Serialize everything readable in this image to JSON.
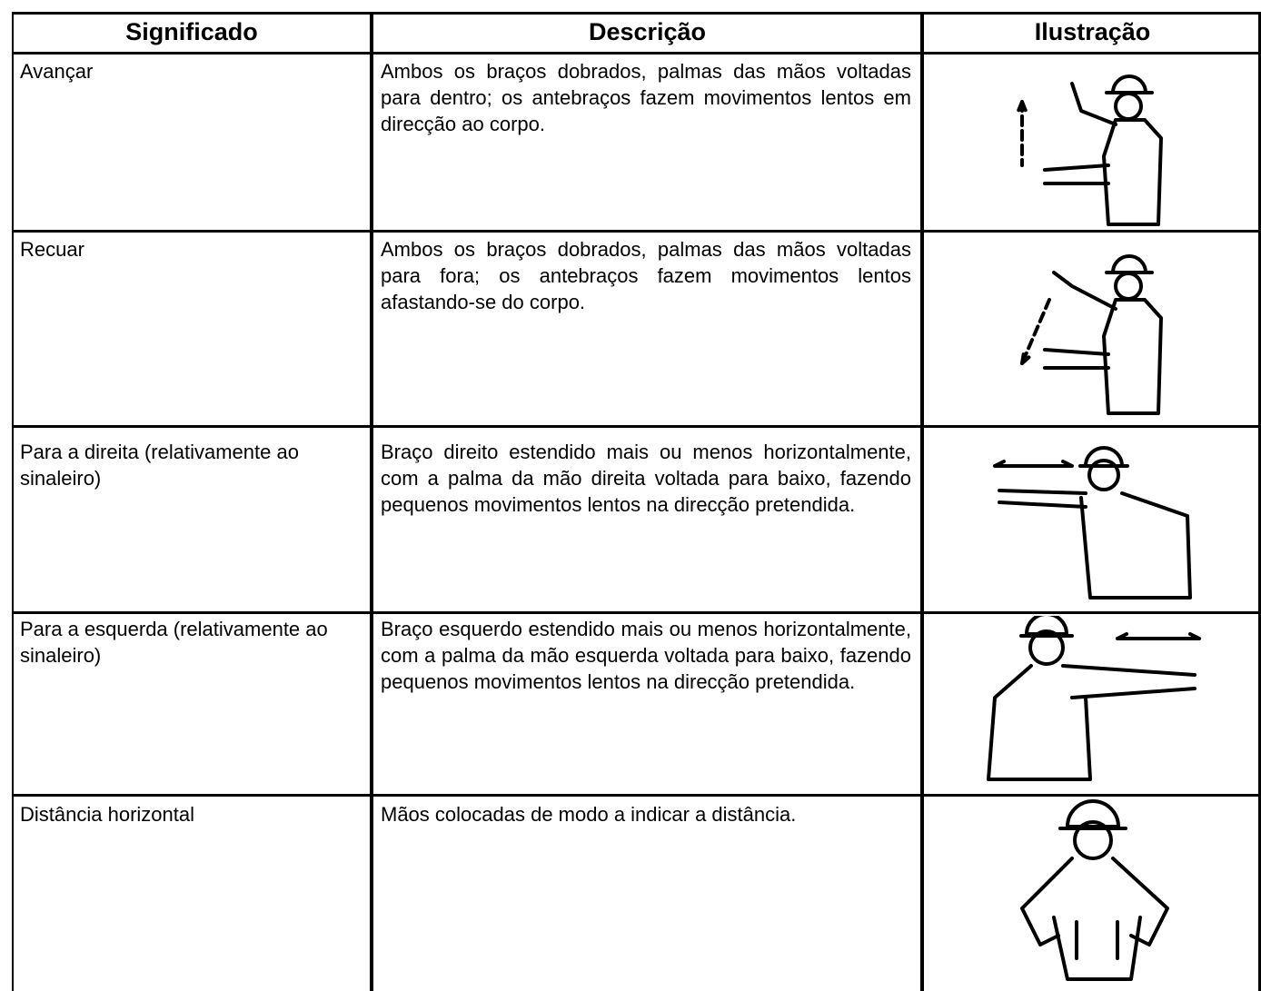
{
  "table": {
    "header": [
      "Significado",
      "Descrição",
      "Ilustração"
    ],
    "rows": [
      [
        "Avançar",
        "Ambos os braços dobrados, palmas das mãos voltadas para dentro; os antebraços fazem movimentos lentos em direcção ao corpo."
      ],
      [
        "Recuar",
        "Ambos os braços dobrados, palmas das mãos voltadas para fora; os antebraços fazem movimentos lentos afastando-se do corpo."
      ],
      [
        "Para a direita (relativamente ao sinaleiro)",
        "Braço direito estendido mais ou menos horizontalmente, com a palma da mão direita voltada para baixo, fazendo pequenos movimentos lentos na direcção pretendida."
      ],
      [
        "Para a esquerda (relativamente ao sinaleiro)",
        "Braço esquerdo estendido mais ou menos horizontalmente, com a palma da mão esquerda voltada para baixo, fazendo pequenos movimentos lentos na direcção pretendida."
      ],
      [
        "Distância horizontal",
        "Mãos colocadas de modo a indicar a distância."
      ]
    ]
  }
}
